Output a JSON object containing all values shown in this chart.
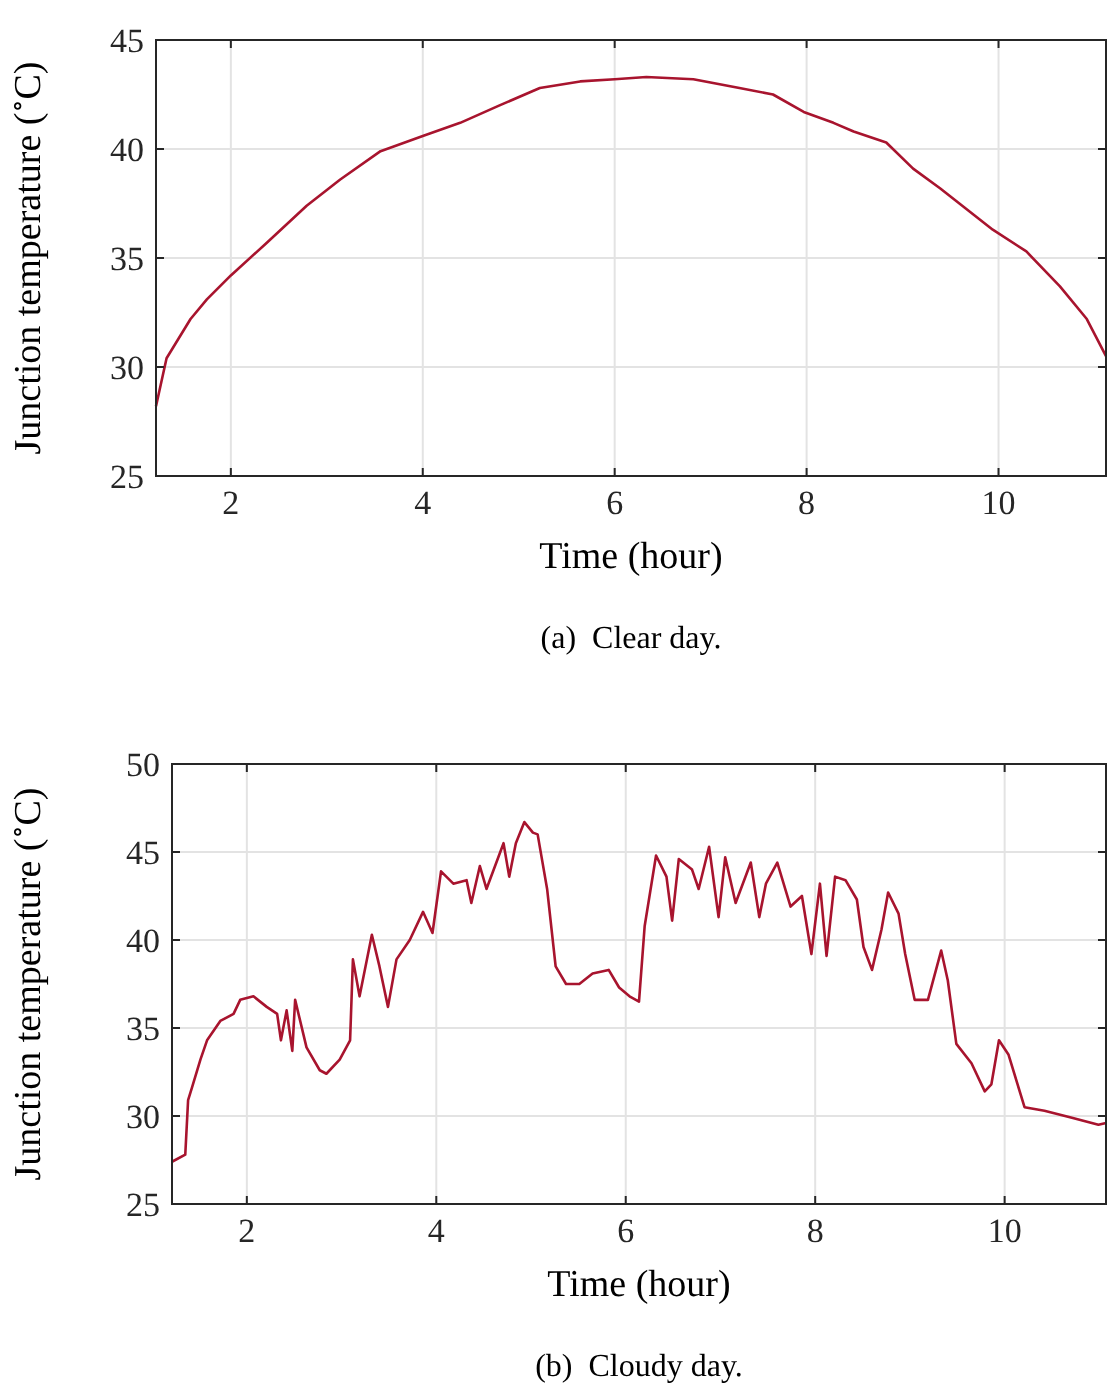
{
  "chart_data": [
    {
      "type": "line",
      "xlabel": "Time (hour)",
      "ylabel": "Junction temperature ($^{∘}$C)",
      "annotations": [
        "(a)  Clear day."
      ],
      "xlim": [
        1.22,
        11.12
      ],
      "ylim": [
        25,
        45
      ],
      "xticks": [
        2,
        4,
        6,
        8,
        10
      ],
      "yticks": [
        25,
        30,
        35,
        40,
        45
      ],
      "grid": true,
      "line_style": "solid",
      "marker": "none",
      "series": [
        {
          "color": "#a8142e",
          "x": [
            1.22,
            1.33,
            1.58,
            1.75,
            2.0,
            2.375,
            2.79,
            3.14,
            3.56,
            4.0,
            4.39,
            4.8,
            5.22,
            5.64,
            6.0,
            6.33,
            6.82,
            7.3,
            7.65,
            7.97,
            8.28,
            8.49,
            8.83,
            9.11,
            9.39,
            9.94,
            10.29,
            10.64,
            10.92,
            11.12
          ],
          "values": [
            28.2,
            30.4,
            32.2,
            33.1,
            34.2,
            35.7,
            37.4,
            38.6,
            39.9,
            40.6,
            41.2,
            42.0,
            42.8,
            43.1,
            43.2,
            43.3,
            43.2,
            42.8,
            42.5,
            41.7,
            41.2,
            40.8,
            40.3,
            39.1,
            38.2,
            36.3,
            35.3,
            33.7,
            32.2,
            30.5
          ]
        }
      ]
    },
    {
      "type": "line",
      "xlabel": "Time (hour)",
      "ylabel": "Junction temperature ($^{∘}$C)",
      "annotations": [
        "(b)  Cloudy day."
      ],
      "xlim": [
        1.21,
        11.07
      ],
      "ylim": [
        25,
        50
      ],
      "xticks": [
        2,
        4,
        6,
        8,
        10
      ],
      "yticks": [
        25,
        30,
        35,
        40,
        45,
        50
      ],
      "grid": true,
      "line_style": "solid",
      "marker": "none",
      "series": [
        {
          "color": "#a8142e",
          "x": [
            1.21,
            1.35,
            1.38,
            1.42,
            1.51,
            1.58,
            1.72,
            1.86,
            1.93,
            2.07,
            2.21,
            2.32,
            2.36,
            2.42,
            2.48,
            2.51,
            2.63,
            2.77,
            2.84,
            2.98,
            3.09,
            3.12,
            3.19,
            3.32,
            3.4,
            3.49,
            3.58,
            3.72,
            3.86,
            3.96,
            4.05,
            4.18,
            4.32,
            4.37,
            4.46,
            4.53,
            4.71,
            4.77,
            4.84,
            4.93,
            5.02,
            5.07,
            5.17,
            5.26,
            5.37,
            5.51,
            5.65,
            5.82,
            5.93,
            6.04,
            6.14,
            6.2,
            6.32,
            6.43,
            6.49,
            6.56,
            6.7,
            6.77,
            6.88,
            6.98,
            7.05,
            7.16,
            7.32,
            7.41,
            7.48,
            7.6,
            7.74,
            7.86,
            7.96,
            8.05,
            8.12,
            8.21,
            8.32,
            8.44,
            8.51,
            8.6,
            8.7,
            8.77,
            8.88,
            8.95,
            9.05,
            9.19,
            9.33,
            9.4,
            9.49,
            9.65,
            9.79,
            9.86,
            9.94,
            10.04,
            10.21,
            10.42,
            10.71,
            10.99,
            11.07
          ],
          "values": [
            27.4,
            27.8,
            30.9,
            31.6,
            33.2,
            34.3,
            35.4,
            35.8,
            36.6,
            36.8,
            36.2,
            35.8,
            34.3,
            36.0,
            33.7,
            36.6,
            33.9,
            32.6,
            32.4,
            33.2,
            34.3,
            38.9,
            36.8,
            40.3,
            38.5,
            36.2,
            38.9,
            40.0,
            41.6,
            40.4,
            43.9,
            43.2,
            43.4,
            42.1,
            44.2,
            42.9,
            45.5,
            43.6,
            45.5,
            46.7,
            46.1,
            46.0,
            42.9,
            38.5,
            37.5,
            37.5,
            38.1,
            38.3,
            37.3,
            36.8,
            36.5,
            40.8,
            44.8,
            43.6,
            41.1,
            44.6,
            44.0,
            42.9,
            45.3,
            41.3,
            44.7,
            42.1,
            44.4,
            41.3,
            43.2,
            44.4,
            41.9,
            42.5,
            39.2,
            43.2,
            39.1,
            43.6,
            43.4,
            42.3,
            39.6,
            38.3,
            40.6,
            42.7,
            41.5,
            39.2,
            36.6,
            36.6,
            39.4,
            37.7,
            34.1,
            33.0,
            31.4,
            31.8,
            34.3,
            33.5,
            30.5,
            30.3,
            29.9,
            29.5,
            29.6
          ]
        }
      ]
    }
  ]
}
